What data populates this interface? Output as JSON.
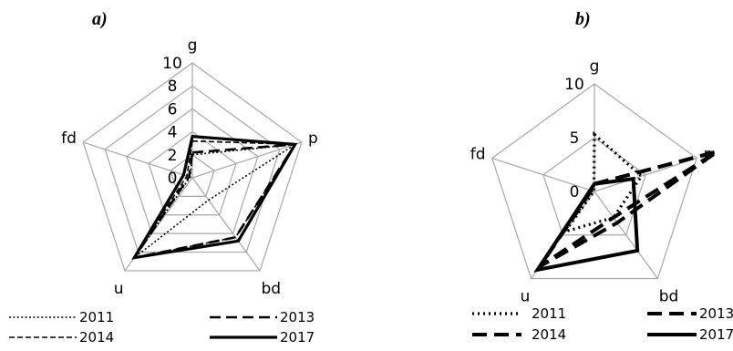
{
  "chart_data": [
    {
      "type": "radar",
      "title": "a)",
      "axes": [
        "g",
        "p",
        "bd",
        "u",
        "fd"
      ],
      "rlim": [
        0,
        10
      ],
      "ticks": [
        "0",
        "2",
        "4",
        "6",
        "8",
        "10"
      ],
      "grid": true,
      "legend_position": "bottom",
      "series": [
        {
          "name": "2011",
          "values": [
            2,
            9.4,
            2.4,
            8.6,
            0.2
          ],
          "color": "#000000",
          "style": "dotted"
        },
        {
          "name": "2013",
          "values": [
            2.2,
            9.4,
            6.4,
            8.6,
            0.3
          ],
          "color": "#000000",
          "style": "dashed"
        },
        {
          "name": "2014",
          "values": [
            3.2,
            9.4,
            6.4,
            8.6,
            0.5
          ],
          "color": "#000000",
          "style": "dashed-fine"
        },
        {
          "name": "2017",
          "values": [
            3.6,
            9.4,
            6.8,
            8.6,
            0.8
          ],
          "color": "#000000",
          "style": "solid"
        }
      ]
    },
    {
      "type": "radar",
      "title": "b)",
      "axes": [
        "g",
        "p",
        "bd",
        "u",
        "fd"
      ],
      "rlim": [
        0,
        10
      ],
      "ticks": [
        "0",
        "5",
        "10"
      ],
      "grid": true,
      "legend_position": "bottom",
      "series": [
        {
          "name": "2011",
          "values": [
            5.3,
            4.6,
            3.0,
            4.6,
            0.05
          ],
          "color": "#000000",
          "style": "dotted"
        },
        {
          "name": "2013",
          "values": [
            0.7,
            12,
            3.6,
            8.6,
            0.3
          ],
          "color": "#000000",
          "style": "dashed"
        },
        {
          "name": "2014",
          "values": [
            0.7,
            12,
            3.0,
            8.6,
            0.3
          ],
          "color": "#000000",
          "style": "dashed-bold"
        },
        {
          "name": "2017",
          "values": [
            0.7,
            3.8,
            6.8,
            9.0,
            0.4
          ],
          "color": "#000000",
          "style": "solid"
        }
      ]
    }
  ]
}
